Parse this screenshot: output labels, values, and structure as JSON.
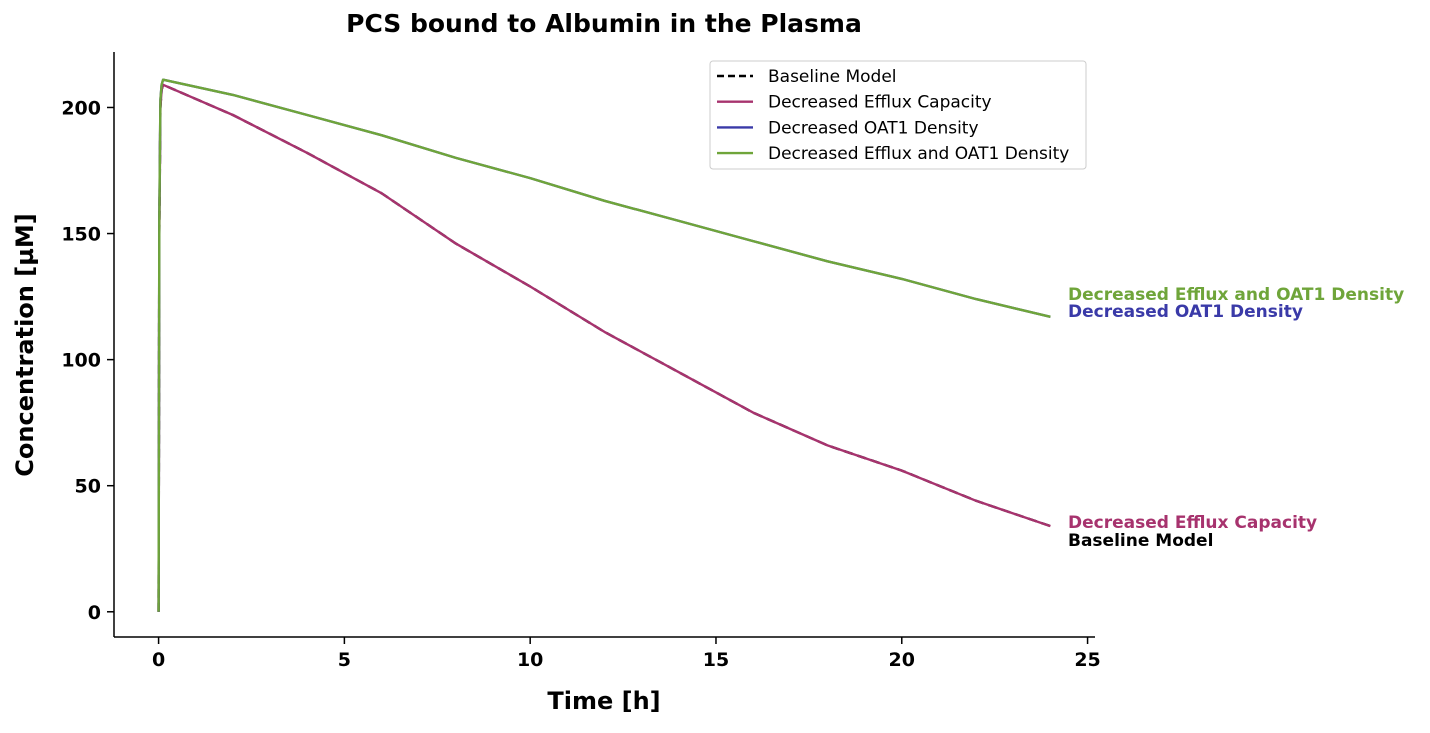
{
  "chart_data": {
    "type": "line",
    "title": "PCS bound to Albumin in the Plasma",
    "xlabel": "Time [h]",
    "ylabel": "Concentration [µM]",
    "xlim": [
      -1.2,
      25.2
    ],
    "ylim": [
      -10,
      222
    ],
    "xticks": [
      0,
      5,
      10,
      15,
      20,
      25
    ],
    "yticks": [
      0,
      50,
      100,
      150,
      200
    ],
    "legend": {
      "placement": "top-right",
      "entries": [
        {
          "name": "Baseline Model",
          "color": "#000000",
          "dash": "dashed"
        },
        {
          "name": "Decreased Efflux Capacity",
          "color": "#a7336e",
          "dash": "solid"
        },
        {
          "name": "Decreased OAT1 Density",
          "color": "#3a3aa8",
          "dash": "solid"
        },
        {
          "name": "Decreased Efflux and OAT1 Density",
          "color": "#6fa53a",
          "dash": "solid"
        }
      ]
    },
    "series": [
      {
        "name": "Baseline Model",
        "color": "#000000",
        "dash": "dashed",
        "x": [
          0,
          0.02,
          0.05,
          0.08,
          0.12,
          2,
          4,
          6,
          8,
          10,
          12,
          14,
          16,
          18,
          20,
          22,
          24
        ],
        "y": [
          0,
          150,
          200,
          207,
          209,
          197,
          182,
          166,
          146,
          129,
          111,
          95,
          79,
          66,
          56,
          44,
          34
        ],
        "end_label": "Baseline Model",
        "end_label_color": "#000000"
      },
      {
        "name": "Decreased Efflux Capacity",
        "color": "#a7336e",
        "dash": "solid",
        "x": [
          0,
          0.02,
          0.05,
          0.08,
          0.12,
          2,
          4,
          6,
          8,
          10,
          12,
          14,
          16,
          18,
          20,
          22,
          24
        ],
        "y": [
          0,
          150,
          200,
          207,
          209,
          197,
          182,
          166,
          146,
          129,
          111,
          95,
          79,
          66,
          56,
          44,
          34
        ],
        "end_label": "Decreased Efflux Capacity",
        "end_label_color": "#a7336e"
      },
      {
        "name": "Decreased OAT1 Density",
        "color": "#3a3aa8",
        "dash": "solid",
        "x": [
          0,
          0.02,
          0.05,
          0.08,
          0.12,
          2,
          4,
          6,
          8,
          10,
          12,
          14,
          16,
          18,
          20,
          22,
          24
        ],
        "y": [
          0,
          155,
          203,
          209,
          211,
          205,
          197,
          189,
          180,
          172,
          163,
          155,
          147,
          139,
          132,
          124,
          117
        ],
        "end_label": "Decreased OAT1 Density",
        "end_label_color": "#3a3aa8"
      },
      {
        "name": "Decreased Efflux and OAT1 Density",
        "color": "#6fa53a",
        "dash": "solid",
        "x": [
          0,
          0.02,
          0.05,
          0.08,
          0.12,
          2,
          4,
          6,
          8,
          10,
          12,
          14,
          16,
          18,
          20,
          22,
          24
        ],
        "y": [
          0,
          155,
          203,
          209,
          211,
          205,
          197,
          189,
          180,
          172,
          163,
          155,
          147,
          139,
          132,
          124,
          117
        ],
        "end_label": "Decreased Efflux and OAT1 Density",
        "end_label_color": "#6fa53a"
      }
    ]
  }
}
